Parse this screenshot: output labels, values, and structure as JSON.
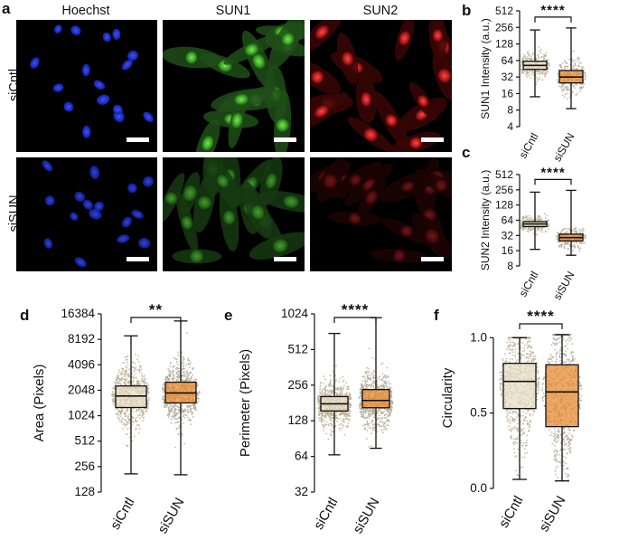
{
  "figure": {
    "panel_letters": [
      "a",
      "b",
      "c",
      "d",
      "e",
      "f"
    ],
    "micrograph": {
      "columns": [
        "Hoechst",
        "SUN1",
        "SUN2"
      ],
      "rows": [
        "siCntl",
        "siSUN"
      ],
      "channel_colors": {
        "Hoechst": "#1a2fd6",
        "SUN1": "#3fbf2a",
        "SUN2": "#d11a1a"
      }
    }
  },
  "colors": {
    "siCntl_fill": "#e8dcc4",
    "siSUN_fill": "#e8862a",
    "dots_cntl": "#b9ab8f",
    "dots_sun": "#b0a796"
  },
  "chart_data": [
    {
      "id": "b",
      "type": "box",
      "scale": "log2",
      "ylabel": "SUN1 Intensity (a.u.)",
      "yticks": [
        4,
        8,
        16,
        32,
        64,
        128,
        256,
        512
      ],
      "ylim": [
        4,
        512
      ],
      "categories": [
        "siCntl",
        "siSUN"
      ],
      "significance": "****",
      "boxes": [
        {
          "name": "siCntl",
          "min": 14,
          "q1": 44,
          "median": 52,
          "q3": 62,
          "max": 230
        },
        {
          "name": "siSUN",
          "min": 8.5,
          "q1": 25,
          "median": 32,
          "q3": 42,
          "max": 250
        }
      ]
    },
    {
      "id": "c",
      "type": "box",
      "scale": "log2",
      "ylabel": "SUN2 Intensity (a.u.)",
      "yticks": [
        8,
        16,
        32,
        64,
        128,
        256,
        512
      ],
      "ylim": [
        8,
        512
      ],
      "categories": [
        "siCntl",
        "siSUN"
      ],
      "significance": "****",
      "boxes": [
        {
          "name": "siCntl",
          "min": 17,
          "q1": 48,
          "median": 54,
          "q3": 60,
          "max": 230
        },
        {
          "name": "siSUN",
          "min": 13,
          "q1": 25,
          "median": 29,
          "q3": 34,
          "max": 250
        }
      ]
    },
    {
      "id": "d",
      "type": "box",
      "scale": "log2",
      "ylabel": "Area (Pixels)",
      "yticks": [
        128,
        256,
        512,
        1024,
        2048,
        4096,
        8192,
        16384
      ],
      "ylim": [
        128,
        16384
      ],
      "categories": [
        "siCntl",
        "siSUN"
      ],
      "significance": "**",
      "boxes": [
        {
          "name": "siCntl",
          "min": 210,
          "q1": 1280,
          "median": 1750,
          "q3": 2300,
          "max": 9000
        },
        {
          "name": "siSUN",
          "min": 205,
          "q1": 1450,
          "median": 1900,
          "q3": 2550,
          "max": 13500
        }
      ]
    },
    {
      "id": "e",
      "type": "box",
      "scale": "log2",
      "ylabel": "Perimeter (Pixels)",
      "yticks": [
        32,
        64,
        128,
        256,
        512,
        1024
      ],
      "ylim": [
        32,
        1024
      ],
      "categories": [
        "siCntl",
        "siSUN"
      ],
      "significance": "****",
      "boxes": [
        {
          "name": "siCntl",
          "min": 66,
          "q1": 155,
          "median": 178,
          "q3": 205,
          "max": 700
        },
        {
          "name": "siSUN",
          "min": 75,
          "q1": 165,
          "median": 190,
          "q3": 235,
          "max": 950
        }
      ]
    },
    {
      "id": "f",
      "type": "box",
      "scale": "linear",
      "ylabel": "Circularity",
      "yticks": [
        0.0,
        0.5,
        1.0
      ],
      "ytick_labels": [
        "0.0",
        "0.5",
        "1.0"
      ],
      "ylim": [
        0,
        1.2
      ],
      "categories": [
        "siCntl",
        "siSUN"
      ],
      "significance": "****",
      "boxes": [
        {
          "name": "siCntl",
          "min": 0.06,
          "q1": 0.53,
          "median": 0.71,
          "q3": 0.83,
          "max": 1.0
        },
        {
          "name": "siSUN",
          "min": 0.05,
          "q1": 0.41,
          "median": 0.64,
          "q3": 0.82,
          "max": 1.02
        }
      ]
    }
  ]
}
